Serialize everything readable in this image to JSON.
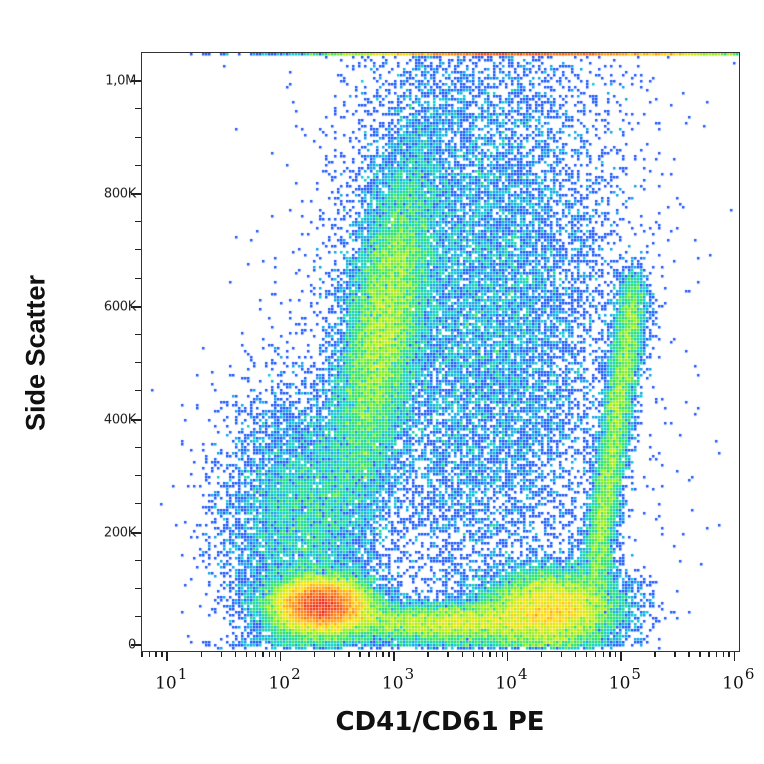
{
  "chart_data": {
    "type": "scatter",
    "subtype": "flow-cytometry density dot plot (pseudocolor)",
    "title": "",
    "xlabel": "CD41/CD61 PE",
    "ylabel": "Side Scatter",
    "x_scale": "log",
    "xlim": [
      6,
      1100000
    ],
    "x_ticks": [
      {
        "base": "10",
        "exp": "1",
        "value": 10
      },
      {
        "base": "10",
        "exp": "2",
        "value": 100
      },
      {
        "base": "10",
        "exp": "3",
        "value": 1000
      },
      {
        "base": "10",
        "exp": "4",
        "value": 10000
      },
      {
        "base": "10",
        "exp": "5",
        "value": 100000
      },
      {
        "base": "10",
        "exp": "6",
        "value": 1000000
      }
    ],
    "y_scale": "linear",
    "ylim": [
      -10000,
      1050000
    ],
    "y_ticks": [
      {
        "label": "0",
        "value": 0
      },
      {
        "label": "200K",
        "value": 200000
      },
      {
        "label": "400K",
        "value": 400000
      },
      {
        "label": "600K",
        "value": 600000
      },
      {
        "label": "800K",
        "value": 800000
      },
      {
        "label": "1,0M",
        "value": 1000000
      }
    ],
    "y_minor_step": 50000,
    "grid": false,
    "legend": null,
    "colormap": [
      "#0010b0",
      "#1a4cff",
      "#00c8e0",
      "#10e060",
      "#a0f000",
      "#ffe000",
      "#ff8000",
      "#f01010"
    ],
    "populations": [
      {
        "name": "CD41/CD61-negative low-SSC cluster (densest, red core)",
        "x_center": 230,
        "y_center": 70000,
        "x_spread_decades": 0.22,
        "y_spread": 25000,
        "weight": 0.22,
        "peak_color": "red"
      },
      {
        "name": "Granulocyte-like high-SSC band",
        "x_center": 800,
        "y_center": 560000,
        "x_spread_decades": 0.18,
        "y_spread": 160000,
        "weight": 0.17,
        "peak_color": "yellow-green"
      },
      {
        "name": "CD41/CD61-positive platelet/megakaryocyte cluster",
        "x_center": 25000,
        "y_center": 65000,
        "x_spread_decades": 0.3,
        "y_spread": 35000,
        "weight": 0.14,
        "peak_color": "yellow"
      },
      {
        "name": "CD41/CD61-positive rising arm",
        "x_center": 100000,
        "y_center": 350000,
        "x_spread_decades": 0.15,
        "y_spread": 180000,
        "weight": 0.08,
        "peak_color": "green"
      },
      {
        "name": "Low-SSC bridge between populations",
        "x_center": 3000,
        "y_center": 40000,
        "x_spread_decades": 0.5,
        "y_spread": 18000,
        "weight": 0.08,
        "peak_color": "cyan-green"
      },
      {
        "name": "Diffuse scatter cloud",
        "x_center": 6000,
        "y_center": 600000,
        "x_spread_decades": 0.6,
        "y_spread": 280000,
        "weight": 0.18,
        "peak_color": "blue"
      },
      {
        "name": "Low-intensity background",
        "x_center": 150,
        "y_center": 220000,
        "x_spread_decades": 0.35,
        "y_spread": 120000,
        "weight": 0.08,
        "peak_color": "blue-cyan"
      },
      {
        "name": "Saturated events at max SSC",
        "x_center": 20000,
        "y_center": 1045000,
        "x_spread_decades": 0.9,
        "y_spread": 2000,
        "weight": 0.05,
        "peak_color": "yellow-orange line"
      }
    ]
  },
  "axes": {
    "x_title": "CD41/CD61 PE",
    "y_title": "Side Scatter"
  }
}
